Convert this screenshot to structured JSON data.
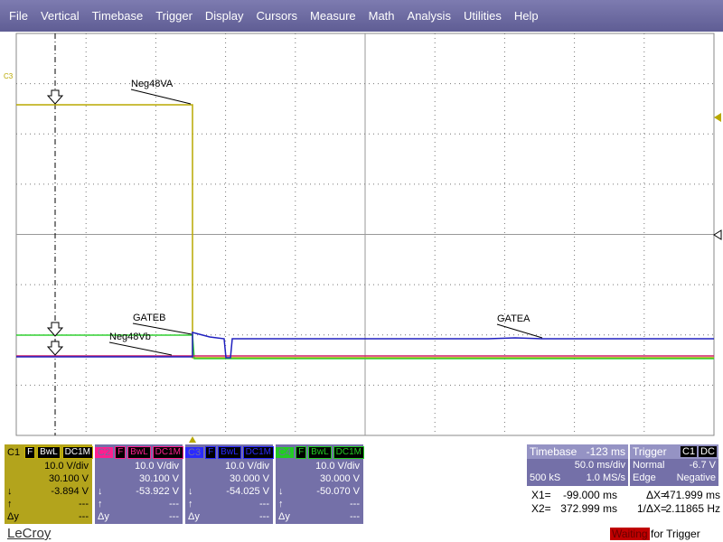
{
  "menu": [
    "File",
    "Vertical",
    "Timebase",
    "Trigger",
    "Display",
    "Cursors",
    "Measure",
    "Math",
    "Analysis",
    "Utilities",
    "Help"
  ],
  "marker": "C3",
  "trace_labels": [
    "Neg48VA",
    "GATEB",
    "Neg48Vb",
    "GATEA"
  ],
  "channels": [
    {
      "name": "C1",
      "color": "#c8b400",
      "flags": [
        "F",
        "BwL",
        "DC1M"
      ],
      "scale": "10.0 V/div",
      "offset": "30.100 V",
      "cursors": [
        {
          "symbol": "↓",
          "value": "-3.894 V"
        },
        {
          "symbol": "↑",
          "value": "---"
        },
        {
          "symbol": "Δy",
          "value": "---"
        }
      ]
    },
    {
      "name": "C2",
      "color": "#ff1f8f",
      "flags": [
        "F",
        "BwL",
        "DC1M"
      ],
      "scale": "10.0 V/div",
      "offset": "30.100 V",
      "cursors": [
        {
          "symbol": "↓",
          "value": "-53.922 V"
        },
        {
          "symbol": "↑",
          "value": "---"
        },
        {
          "symbol": "Δy",
          "value": "---"
        }
      ]
    },
    {
      "name": "C3",
      "color": "#2a2aff",
      "flags": [
        "F",
        "BwL",
        "DC1M"
      ],
      "scale": "10.0 V/div",
      "offset": "30.000 V",
      "cursors": [
        {
          "symbol": "↓",
          "value": "-54.025 V"
        },
        {
          "symbol": "↑",
          "value": "---"
        },
        {
          "symbol": "Δy",
          "value": "---"
        }
      ]
    },
    {
      "name": "C4",
      "color": "#22cc22",
      "flags": [
        "F",
        "BwL",
        "DC1M"
      ],
      "scale": "10.0 V/div",
      "offset": "30.000 V",
      "cursors": [
        {
          "symbol": "↓",
          "value": "-50.070 V"
        },
        {
          "symbol": "↑",
          "value": "---"
        },
        {
          "symbol": "Δy",
          "value": "---"
        }
      ]
    }
  ],
  "timebase": {
    "title": "Timebase",
    "delay": "-123 ms",
    "scale": "50.0 ms/div",
    "samples": "500 kS",
    "rate": "1.0 MS/s"
  },
  "trigger": {
    "title": "Trigger",
    "source": "C1",
    "coupling": "DC",
    "mode": "Normal",
    "level": "-6.7 V",
    "type": "Edge",
    "slope": "Negative"
  },
  "cursors": [
    {
      "label": "X1=",
      "value": "-99.000 ms",
      "delta_label": "ΔX=",
      "delta": "471.999 ms"
    },
    {
      "label": "X2=",
      "value": "372.999 ms",
      "delta_label": "1/ΔX=",
      "delta": "2.11865 Hz"
    }
  ],
  "brand": "LeCroy",
  "status": {
    "state": "Waiting",
    "text": "for Trigger"
  }
}
